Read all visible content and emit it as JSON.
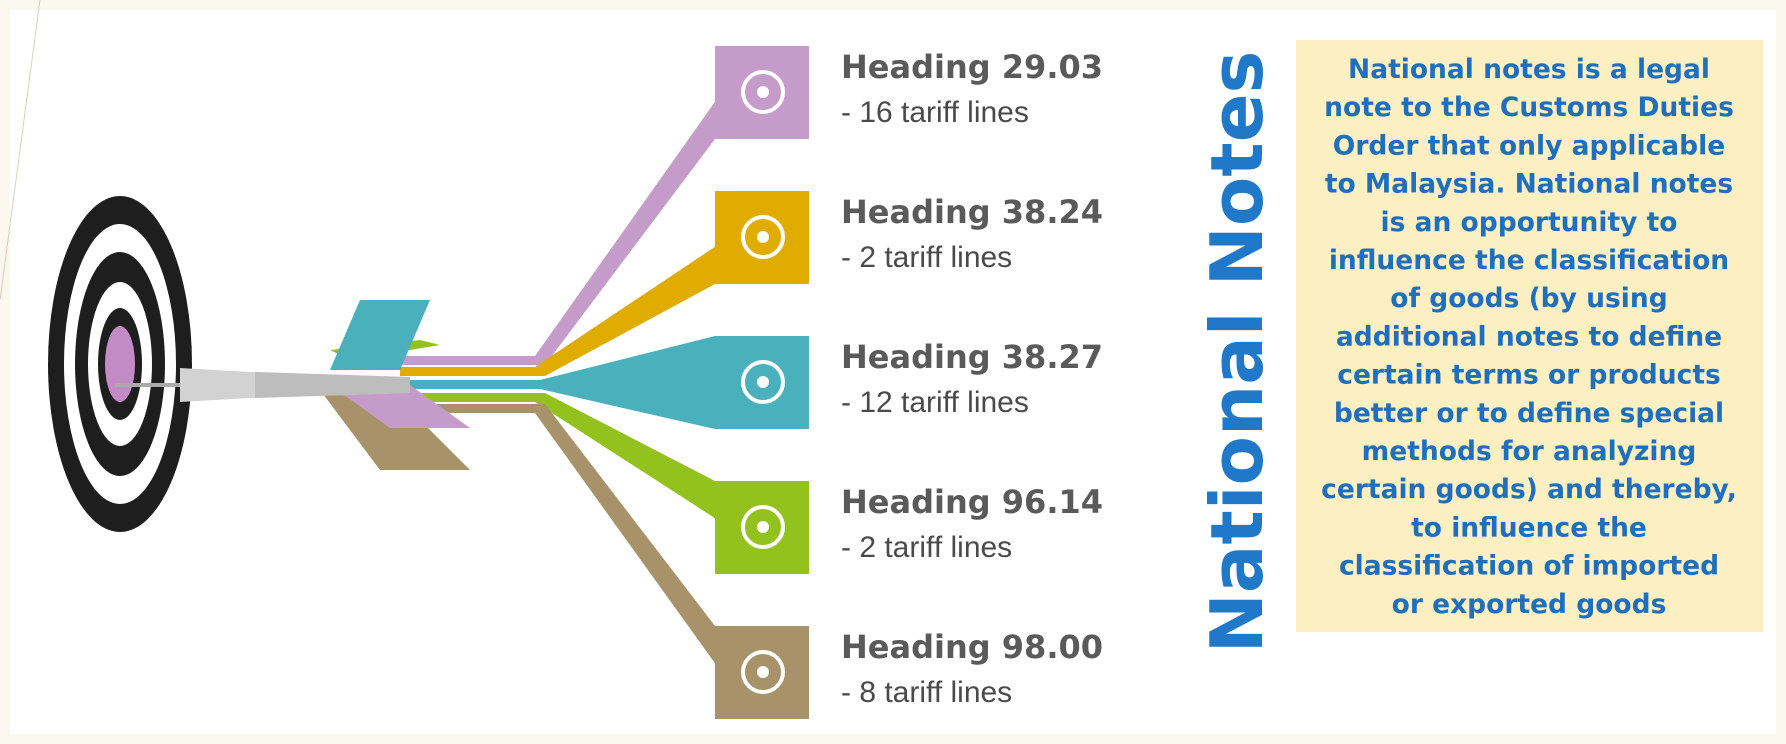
{
  "title": "National Notes",
  "headings": [
    {
      "heading": "Heading 29.03",
      "detail": "- 16 tariff lines"
    },
    {
      "heading": "Heading 38.24",
      "detail": "- 2 tariff lines"
    },
    {
      "heading": "Heading 38.27",
      "detail": "- 12 tariff lines"
    },
    {
      "heading": "Heading 96.14",
      "detail": "- 2 tariff lines"
    },
    {
      "heading": "Heading 98.00",
      "detail": "- 8 tariff lines"
    }
  ],
  "note": {
    "lines": [
      "National notes is a legal",
      "note to the Customs Duties",
      "Order that only applicable",
      "to Malaysia. National notes",
      "is an opportunity to",
      "influence the classification",
      "of goods (by using",
      "additional notes to define",
      "certain terms or products",
      "better or to define special",
      "methods for analyzing",
      "certain goods) and thereby,",
      "to influence the",
      "classification of imported",
      "or exported goods"
    ]
  }
}
